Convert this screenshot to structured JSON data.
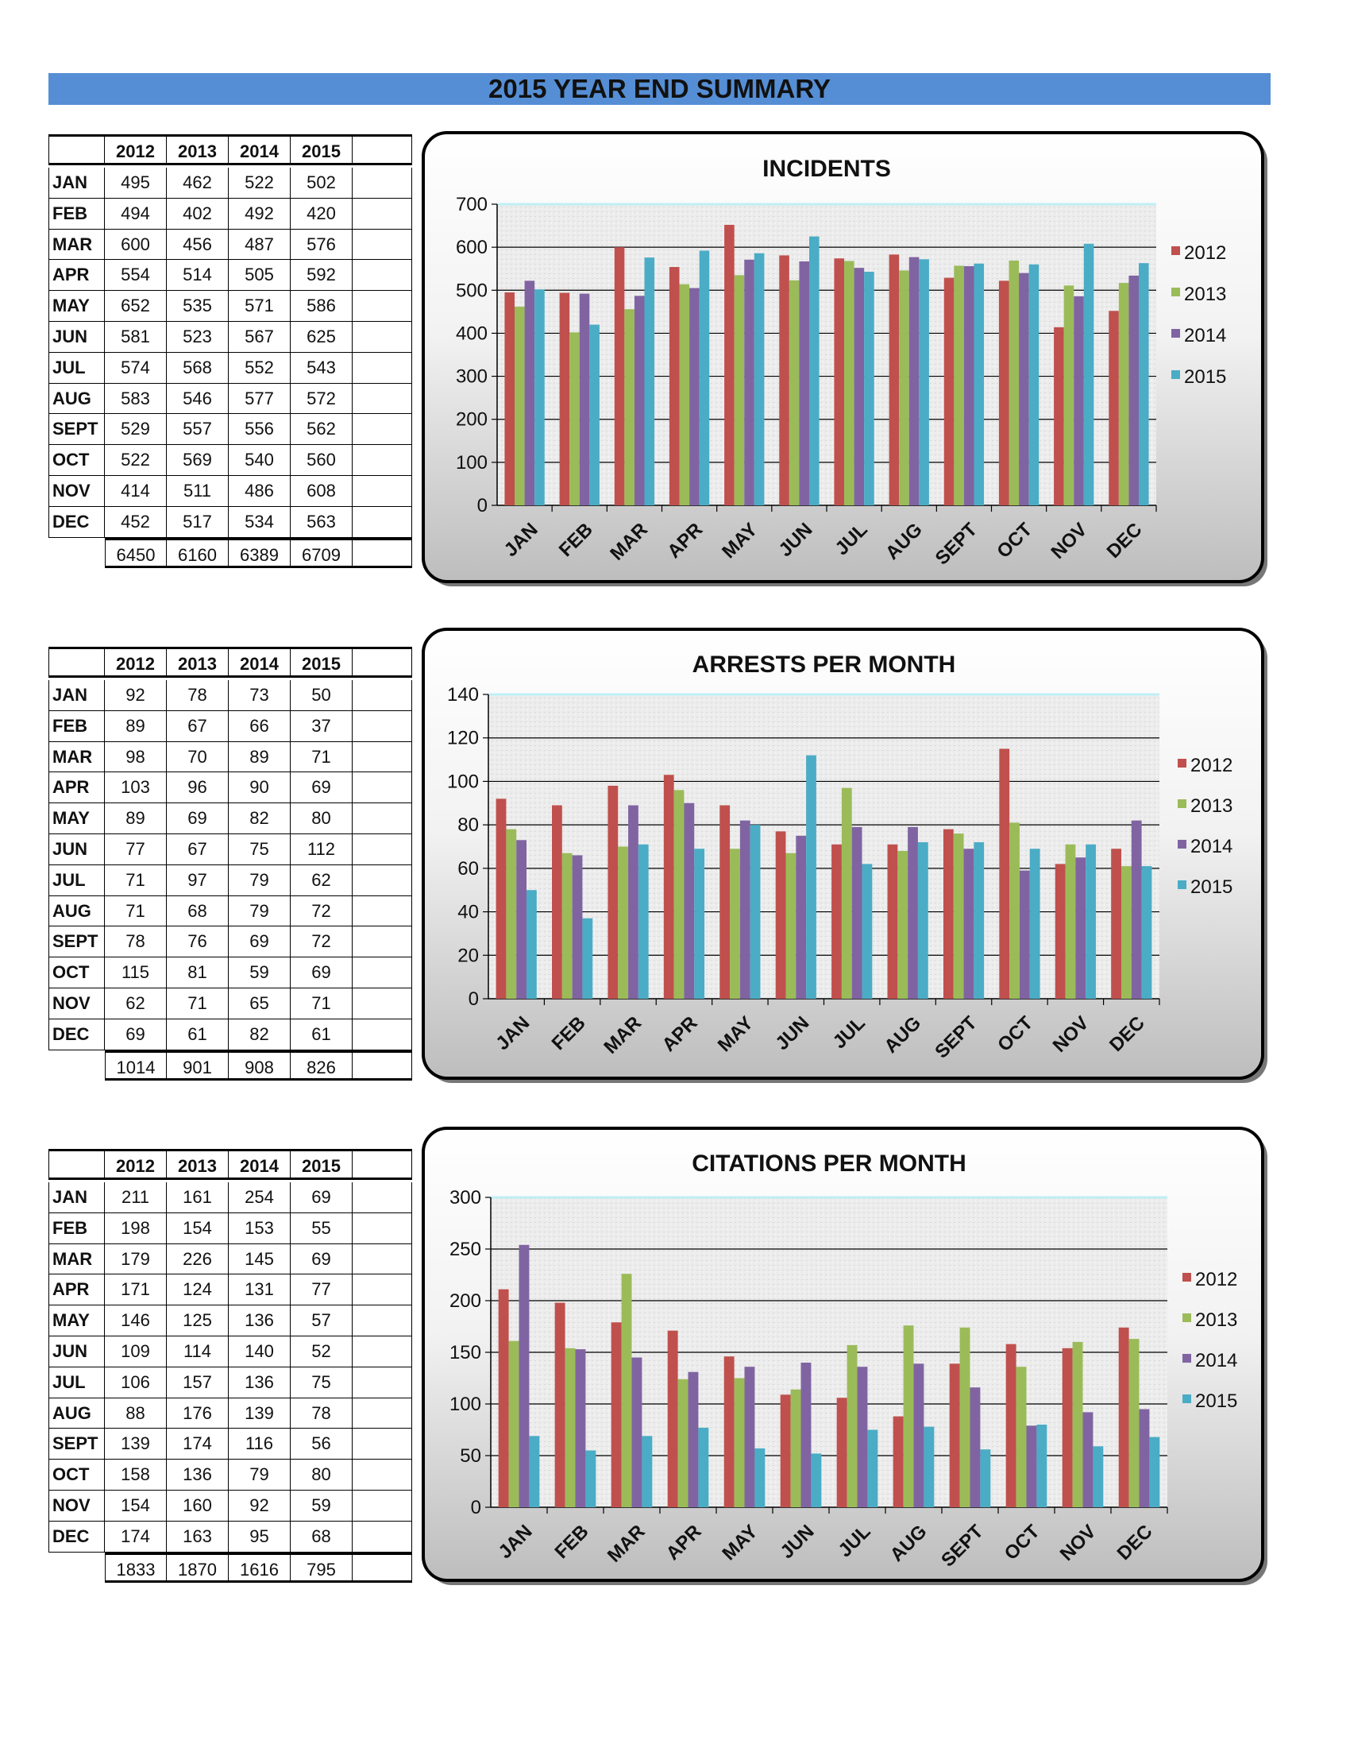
{
  "page_title": "2015 YEAR END SUMMARY",
  "colors": {
    "2012": "#c0504d",
    "2013": "#9bbb59",
    "2014": "#8064a2",
    "2015": "#4bacc6",
    "title_bar": "#558ed5"
  },
  "tables": [
    {
      "totals": [
        "6450",
        "6160",
        "6389",
        "6709"
      ]
    },
    {
      "totals": [
        "1014",
        "901",
        "908",
        "826"
      ]
    },
    {
      "totals": [
        "1833",
        "1870",
        "1616",
        "795"
      ]
    }
  ],
  "chart_data": [
    {
      "type": "bar",
      "title": "INCIDENTS",
      "categories": [
        "JAN",
        "FEB",
        "MAR",
        "APR",
        "MAY",
        "JUN",
        "JUL",
        "AUG",
        "SEPT",
        "OCT",
        "NOV",
        "DEC"
      ],
      "series": [
        {
          "name": "2012",
          "values": [
            495,
            494,
            600,
            554,
            652,
            581,
            574,
            583,
            529,
            522,
            414,
            452
          ]
        },
        {
          "name": "2013",
          "values": [
            462,
            402,
            456,
            514,
            535,
            523,
            568,
            546,
            557,
            569,
            511,
            517
          ]
        },
        {
          "name": "2014",
          "values": [
            522,
            492,
            487,
            505,
            571,
            567,
            552,
            577,
            556,
            540,
            486,
            534
          ]
        },
        {
          "name": "2015",
          "values": [
            502,
            420,
            576,
            592,
            586,
            625,
            543,
            572,
            562,
            560,
            608,
            563
          ]
        }
      ],
      "ylim": [
        0,
        700
      ],
      "yticks": [
        0,
        100,
        200,
        300,
        400,
        500,
        600,
        700
      ],
      "grid": true,
      "legend": "right"
    },
    {
      "type": "bar",
      "title": "ARRESTS PER MONTH",
      "categories": [
        "JAN",
        "FEB",
        "MAR",
        "APR",
        "MAY",
        "JUN",
        "JUL",
        "AUG",
        "SEPT",
        "OCT",
        "NOV",
        "DEC"
      ],
      "series": [
        {
          "name": "2012",
          "values": [
            92,
            89,
            98,
            103,
            89,
            77,
            71,
            71,
            78,
            115,
            62,
            69
          ]
        },
        {
          "name": "2013",
          "values": [
            78,
            67,
            70,
            96,
            69,
            67,
            97,
            68,
            76,
            81,
            71,
            61
          ]
        },
        {
          "name": "2014",
          "values": [
            73,
            66,
            89,
            90,
            82,
            75,
            79,
            79,
            69,
            59,
            65,
            82
          ]
        },
        {
          "name": "2015",
          "values": [
            50,
            37,
            71,
            69,
            80,
            112,
            62,
            72,
            72,
            69,
            71,
            61
          ]
        }
      ],
      "ylim": [
        0,
        140
      ],
      "yticks": [
        0,
        20,
        40,
        60,
        80,
        100,
        120,
        140
      ],
      "grid": true,
      "legend": "right"
    },
    {
      "type": "bar",
      "title": "CITATIONS PER MONTH",
      "categories": [
        "JAN",
        "FEB",
        "MAR",
        "APR",
        "MAY",
        "JUN",
        "JUL",
        "AUG",
        "SEPT",
        "OCT",
        "NOV",
        "DEC"
      ],
      "series": [
        {
          "name": "2012",
          "values": [
            211,
            198,
            179,
            171,
            146,
            109,
            106,
            88,
            139,
            158,
            154,
            174
          ]
        },
        {
          "name": "2013",
          "values": [
            161,
            154,
            226,
            124,
            125,
            114,
            157,
            176,
            174,
            136,
            160,
            163
          ]
        },
        {
          "name": "2014",
          "values": [
            254,
            153,
            145,
            131,
            136,
            140,
            136,
            139,
            116,
            79,
            92,
            95
          ]
        },
        {
          "name": "2015",
          "values": [
            69,
            55,
            69,
            77,
            57,
            52,
            75,
            78,
            56,
            80,
            59,
            68
          ]
        }
      ],
      "ylim": [
        0,
        300
      ],
      "yticks": [
        0,
        50,
        100,
        150,
        200,
        250,
        300
      ],
      "grid": true,
      "legend": "right"
    }
  ]
}
